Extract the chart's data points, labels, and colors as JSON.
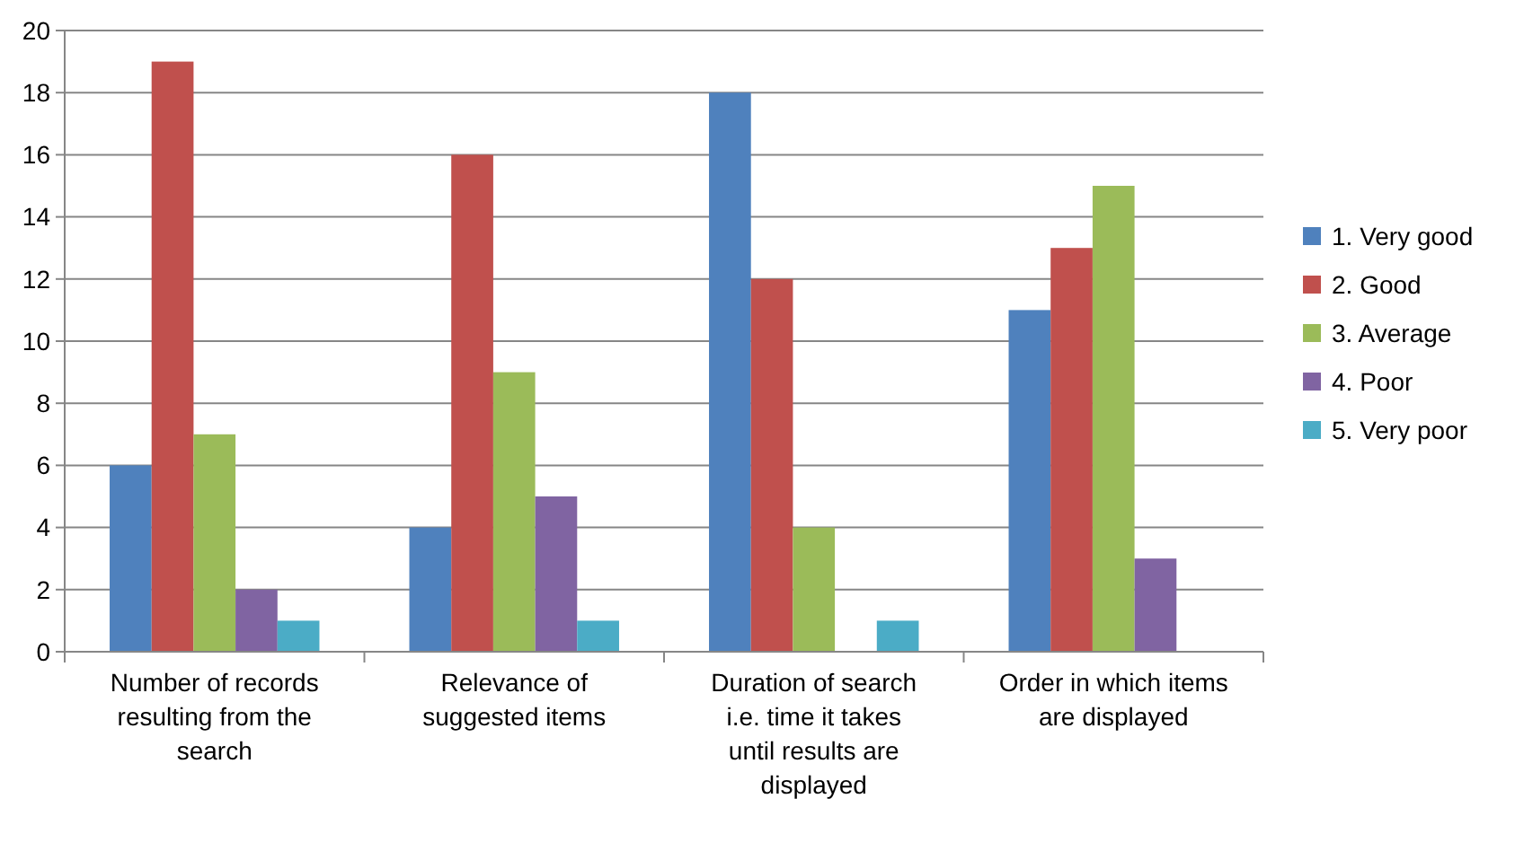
{
  "chart_data": {
    "type": "bar",
    "categories": [
      "Number of records resulting from the search",
      "Relevance of suggested items",
      "Duration of search i.e. time it takes until results are displayed",
      "Order in which items are displayed"
    ],
    "series": [
      {
        "name": "1. Very good",
        "color": "#4f81bd",
        "values": [
          6,
          4,
          18,
          11
        ]
      },
      {
        "name": "2. Good",
        "color": "#c0504d",
        "values": [
          19,
          16,
          12,
          13
        ]
      },
      {
        "name": "3. Average",
        "color": "#9bbb59",
        "values": [
          7,
          9,
          4,
          15
        ]
      },
      {
        "name": "4. Poor",
        "color": "#8064a2",
        "values": [
          2,
          5,
          0,
          3
        ]
      },
      {
        "name": "5. Very poor",
        "color": "#4bacc6",
        "values": [
          1,
          1,
          1,
          0
        ]
      }
    ],
    "ylim": [
      0,
      20
    ],
    "yticks": [
      0,
      2,
      4,
      6,
      8,
      10,
      12,
      14,
      16,
      18,
      20
    ],
    "grid": "y",
    "legend": "right"
  }
}
